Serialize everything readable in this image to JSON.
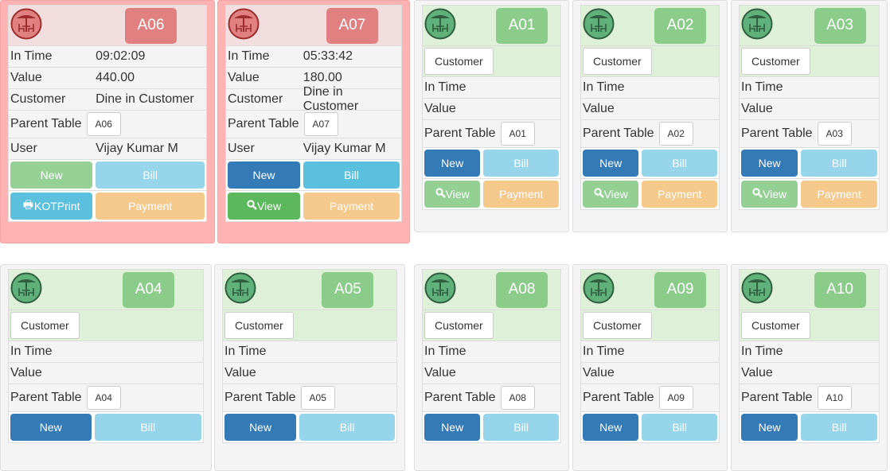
{
  "labels": {
    "in_time": "In Time",
    "value": "Value",
    "customer": "Customer",
    "parent_table": "Parent Table",
    "user": "User",
    "customer_button": "Customer"
  },
  "colors": {
    "occupied_bg": "#ffb3b3",
    "occupied_header": "#f2dede",
    "occupied_badge": "#e08080",
    "free_header": "#dff0d8",
    "free_badge": "#8ccc8a",
    "primary": "#337ab7",
    "info": "#5bc0de",
    "warning": "#f5c98c",
    "success": "#5cb85c"
  },
  "tables": [
    {
      "id": "A06",
      "status": "occupied",
      "in_time": "09:02:09",
      "value": "440.00",
      "customer": "Dine in Customer",
      "parent_table": "A06",
      "user": "Vijay Kumar M",
      "buttons": [
        [
          {
            "label": "New",
            "color": "#95d095"
          },
          {
            "label": "Bill",
            "color": "#96d5ea"
          }
        ],
        [
          {
            "label": "KOTPrint",
            "icon": "printer-icon",
            "color": "#5bc0de"
          },
          {
            "label": "Payment",
            "color": "#f5c98c"
          }
        ]
      ]
    },
    {
      "id": "A07",
      "status": "occupied",
      "in_time": "05:33:42",
      "value": "180.00",
      "customer": "Dine in Customer",
      "parent_table": "A07",
      "user": "Vijay Kumar M",
      "buttons": [
        [
          {
            "label": "New",
            "color": "#337ab7"
          },
          {
            "label": "Bill",
            "color": "#5bc0de"
          }
        ],
        [
          {
            "label": "View",
            "icon": "search-icon",
            "color": "#5cb85c"
          },
          {
            "label": "Payment",
            "color": "#f5c98c"
          }
        ]
      ]
    },
    {
      "id": "A01",
      "status": "free",
      "parent_table": "A01",
      "buttons": [
        [
          {
            "label": "New",
            "color": "#337ab7"
          },
          {
            "label": "Bill",
            "color": "#96d5ea"
          }
        ],
        [
          {
            "label": "View",
            "icon": "search-icon",
            "color": "#94d094"
          },
          {
            "label": "Payment",
            "color": "#f5c98c"
          }
        ]
      ]
    },
    {
      "id": "A02",
      "status": "free",
      "parent_table": "A02",
      "buttons": [
        [
          {
            "label": "New",
            "color": "#337ab7"
          },
          {
            "label": "Bill",
            "color": "#96d5ea"
          }
        ],
        [
          {
            "label": "View",
            "icon": "search-icon",
            "color": "#94d094"
          },
          {
            "label": "Payment",
            "color": "#f5c98c"
          }
        ]
      ]
    },
    {
      "id": "A03",
      "status": "free",
      "parent_table": "A03",
      "buttons": [
        [
          {
            "label": "New",
            "color": "#337ab7"
          },
          {
            "label": "Bill",
            "color": "#96d5ea"
          }
        ],
        [
          {
            "label": "View",
            "icon": "search-icon",
            "color": "#94d094"
          },
          {
            "label": "Payment",
            "color": "#f5c98c"
          }
        ]
      ]
    },
    {
      "id": "A04",
      "status": "free",
      "parent_table": "A04",
      "buttons": [
        [
          {
            "label": "New",
            "color": "#337ab7"
          },
          {
            "label": "Bill",
            "color": "#96d5ea"
          }
        ]
      ]
    },
    {
      "id": "A05",
      "status": "free",
      "parent_table": "A05",
      "buttons": [
        [
          {
            "label": "New",
            "color": "#337ab7"
          },
          {
            "label": "Bill",
            "color": "#96d5ea"
          }
        ]
      ]
    },
    {
      "id": "A08",
      "status": "free",
      "parent_table": "A08",
      "buttons": [
        [
          {
            "label": "New",
            "color": "#337ab7"
          },
          {
            "label": "Bill",
            "color": "#96d5ea"
          }
        ]
      ]
    },
    {
      "id": "A09",
      "status": "free",
      "parent_table": "A09",
      "buttons": [
        [
          {
            "label": "New",
            "color": "#337ab7"
          },
          {
            "label": "Bill",
            "color": "#96d5ea"
          }
        ]
      ]
    },
    {
      "id": "A10",
      "status": "free",
      "parent_table": "A10",
      "buttons": [
        [
          {
            "label": "New",
            "color": "#337ab7"
          },
          {
            "label": "Bill",
            "color": "#96d5ea"
          }
        ]
      ]
    }
  ]
}
